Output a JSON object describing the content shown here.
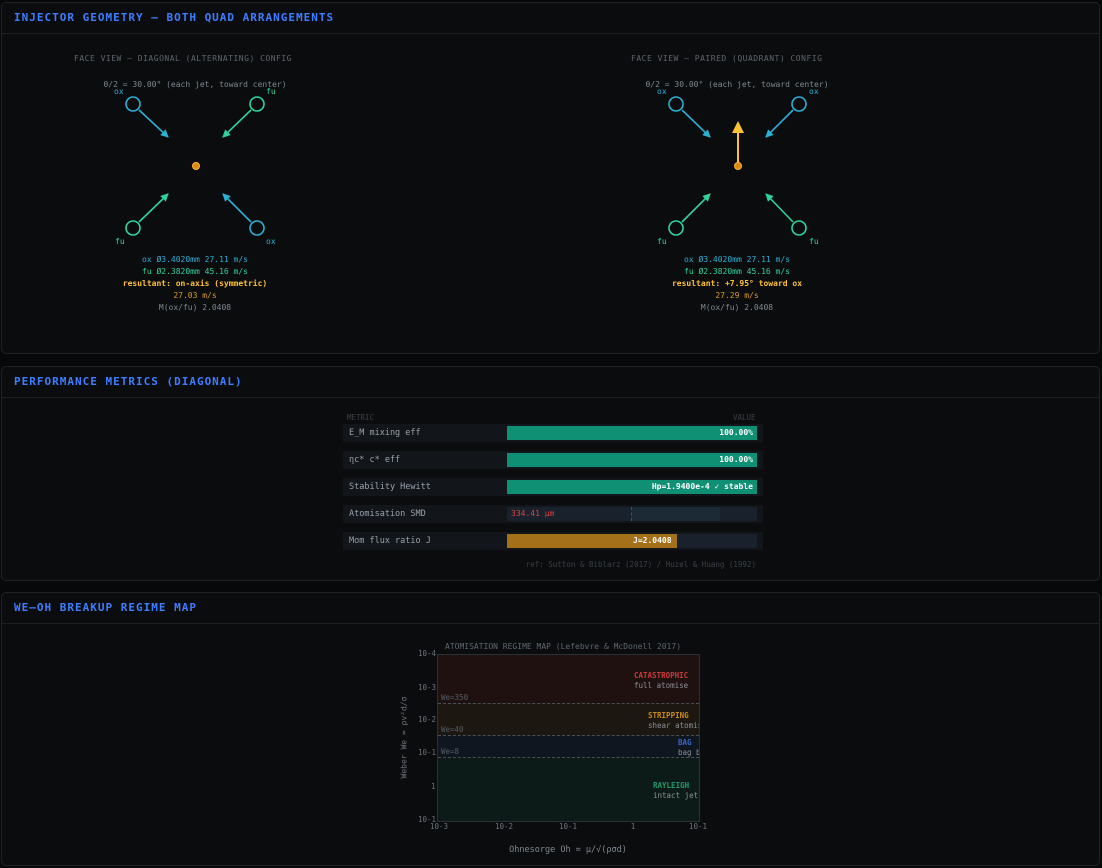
{
  "geometry": {
    "title": "INJECTOR GEOMETRY — BOTH QUAD ARRANGEMENTS",
    "diagonal": {
      "subtitle": "FACE VIEW — DIAGONAL (ALTERNATING) CONFIG",
      "angle_note": "θ/2 = 30.00° (each jet, toward center)",
      "labels": {
        "tl": "ox",
        "tr": "fu",
        "bl": "fu",
        "br": "ox"
      },
      "ox_line": "ox Ø3.4020mm 27.11 m/s",
      "fu_line": "fu Ø2.3820mm 45.16 m/s",
      "resultant": "resultant: on-axis (symmetric)",
      "speed": "27.03 m/s",
      "momentum": "M(ox/fu) 2.0408"
    },
    "paired": {
      "subtitle": "FACE VIEW — PAIRED (QUADRANT) CONFIG",
      "angle_note": "θ/2 = 30.00° (each jet, toward center)",
      "labels": {
        "tl": "ox",
        "tr": "ox",
        "bl": "fu",
        "br": "fu"
      },
      "ox_line": "ox Ø3.4020mm 27.11 m/s",
      "fu_line": "fu Ø2.3820mm 45.16 m/s",
      "resultant": "resultant: +7.95° toward ox",
      "speed": "27.29 m/s",
      "momentum": "M(ox/fu) 2.0408"
    },
    "colors": {
      "ox": "#2bb0d6",
      "fu": "#2fd39d",
      "resultant": "#ffc233"
    }
  },
  "performance": {
    "title": "PERFORMANCE METRICS (DIAGONAL)",
    "col_metric": "METRIC",
    "col_value": "VALUE",
    "rows": [
      {
        "label": "E_M  mixing eff",
        "value": "100.00%",
        "fill": 1.0,
        "color": "#0f8f73"
      },
      {
        "label": "ηc*  c* eff",
        "value": "100.00%",
        "fill": 1.0,
        "color": "#0f8f73"
      },
      {
        "label": "Stability  Hewitt",
        "value": "Hp=1.9400e-4  ✓ stable",
        "fill": 1.0,
        "color": "#0f8f73"
      },
      {
        "label": "Atomisation  SMD",
        "value": "334.41 μm",
        "fill": 0,
        "color": "#e0453c"
      },
      {
        "label": "Mom flux ratio J",
        "value": "J=2.0408",
        "fill": 0.68,
        "color": "#a4701a"
      }
    ],
    "reference": "ref: Sutton & Biblarz (2017) / Huzel & Huang (1992)"
  },
  "regime": {
    "title": "WE–OH BREAKUP REGIME MAP",
    "chart_title": "ATOMISATION REGIME MAP  (Lefebvre & McDonell 2017)",
    "ylabel": "Weber  We = ρv²d/σ",
    "xlabel": "Ohnesorge  Oh = μ/√(ρσd)",
    "y_ticks": [
      "10-4",
      "10-3",
      "10-2",
      "10-1",
      "1",
      "10-1"
    ],
    "x_ticks": [
      "10-3",
      "10-2",
      "10-1",
      "1",
      "10-1"
    ],
    "thresholds": [
      {
        "label": "We=350",
        "we": 350
      },
      {
        "label": "We=40",
        "we": 40
      },
      {
        "label": "We=8",
        "we": 8
      }
    ],
    "regimes": [
      {
        "name": "CATASTROPHIC",
        "desc": "full atomise",
        "color": "#c93b3b"
      },
      {
        "name": "STRIPPING",
        "desc": "shear atomise",
        "color": "#c98a1b"
      },
      {
        "name": "BAG",
        "desc": "bag brea",
        "color": "#3b66c9"
      },
      {
        "name": "RAYLEIGH",
        "desc": "intact jet",
        "color": "#1f9c6c"
      }
    ]
  }
}
